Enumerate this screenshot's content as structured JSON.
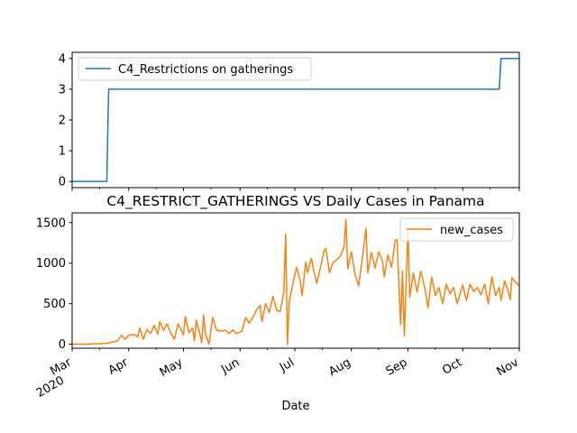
{
  "chart_data": [
    {
      "type": "line",
      "title": "",
      "xlabel": "",
      "ylabel": "",
      "xlim": [
        "2020-03-01",
        "2020-11-01"
      ],
      "ylim": [
        -0.2,
        4.2
      ],
      "yticks": [
        0,
        1,
        2,
        3,
        4
      ],
      "legend": "top-left",
      "grid": false,
      "series": [
        {
          "name": "C4_Restrictions on gatherings",
          "color": "#1f77b4",
          "points": [
            [
              "2020-03-01",
              0
            ],
            [
              "2020-03-20",
              0
            ],
            [
              "2020-03-21",
              3
            ],
            [
              "2020-10-21",
              3
            ],
            [
              "2020-10-22",
              4
            ],
            [
              "2020-11-01",
              4
            ]
          ]
        }
      ]
    },
    {
      "type": "line",
      "title": "C4_RESTRICT_GATHERINGS VS Daily Cases in Panama",
      "xlabel": "Date",
      "ylabel": "",
      "xlim": [
        "2020-03-01",
        "2020-11-01"
      ],
      "ylim": [
        -50,
        1620
      ],
      "yticks": [
        0,
        500,
        1000,
        1500
      ],
      "xticks": [
        {
          "date": "2020-03-01",
          "label": "Mar",
          "year": "2020"
        },
        {
          "date": "2020-04-01",
          "label": "Apr"
        },
        {
          "date": "2020-05-01",
          "label": "May"
        },
        {
          "date": "2020-06-01",
          "label": "Jun"
        },
        {
          "date": "2020-07-01",
          "label": "Jul"
        },
        {
          "date": "2020-08-01",
          "label": "Aug"
        },
        {
          "date": "2020-09-01",
          "label": "Sep"
        },
        {
          "date": "2020-10-01",
          "label": "Oct"
        },
        {
          "date": "2020-11-01",
          "label": "Nov"
        }
      ],
      "legend": "top-right",
      "grid": false,
      "series": [
        {
          "name": "new_cases",
          "color": "#ff7f0e",
          "points": [
            [
              "2020-03-01",
              0
            ],
            [
              "2020-03-10",
              0
            ],
            [
              "2020-03-15",
              5
            ],
            [
              "2020-03-20",
              10
            ],
            [
              "2020-03-23",
              25
            ],
            [
              "2020-03-26",
              40
            ],
            [
              "2020-03-28",
              110
            ],
            [
              "2020-03-30",
              60
            ],
            [
              "2020-04-01",
              110
            ],
            [
              "2020-04-04",
              120
            ],
            [
              "2020-04-06",
              90
            ],
            [
              "2020-04-07",
              200
            ],
            [
              "2020-04-09",
              60
            ],
            [
              "2020-04-11",
              180
            ],
            [
              "2020-04-13",
              130
            ],
            [
              "2020-04-15",
              230
            ],
            [
              "2020-04-17",
              120
            ],
            [
              "2020-04-18",
              280
            ],
            [
              "2020-04-20",
              170
            ],
            [
              "2020-04-22",
              250
            ],
            [
              "2020-04-24",
              140
            ],
            [
              "2020-04-26",
              60
            ],
            [
              "2020-04-28",
              250
            ],
            [
              "2020-04-30",
              170
            ],
            [
              "2020-05-01",
              110
            ],
            [
              "2020-05-02",
              340
            ],
            [
              "2020-05-04",
              140
            ],
            [
              "2020-05-06",
              200
            ],
            [
              "2020-05-07",
              40
            ],
            [
              "2020-05-08",
              300
            ],
            [
              "2020-05-10",
              120
            ],
            [
              "2020-05-11",
              20
            ],
            [
              "2020-05-12",
              360
            ],
            [
              "2020-05-13",
              130
            ],
            [
              "2020-05-15",
              0
            ],
            [
              "2020-05-17",
              330
            ],
            [
              "2020-05-19",
              180
            ],
            [
              "2020-05-21",
              160
            ],
            [
              "2020-05-24",
              170
            ],
            [
              "2020-05-26",
              130
            ],
            [
              "2020-05-28",
              175
            ],
            [
              "2020-05-30",
              130
            ],
            [
              "2020-06-02",
              160
            ],
            [
              "2020-06-04",
              330
            ],
            [
              "2020-06-06",
              260
            ],
            [
              "2020-06-08",
              330
            ],
            [
              "2020-06-10",
              420
            ],
            [
              "2020-06-12",
              480
            ],
            [
              "2020-06-13",
              280
            ],
            [
              "2020-06-15",
              500
            ],
            [
              "2020-06-17",
              390
            ],
            [
              "2020-06-19",
              590
            ],
            [
              "2020-06-21",
              420
            ],
            [
              "2020-06-23",
              400
            ],
            [
              "2020-06-25",
              650
            ],
            [
              "2020-06-26",
              1360
            ],
            [
              "2020-06-27",
              0
            ],
            [
              "2020-06-28",
              530
            ],
            [
              "2020-06-30",
              750
            ],
            [
              "2020-07-02",
              950
            ],
            [
              "2020-07-04",
              780
            ],
            [
              "2020-07-05",
              600
            ],
            [
              "2020-07-07",
              1010
            ],
            [
              "2020-07-08",
              880
            ],
            [
              "2020-07-10",
              1060
            ],
            [
              "2020-07-11",
              950
            ],
            [
              "2020-07-13",
              750
            ],
            [
              "2020-07-15",
              940
            ],
            [
              "2020-07-17",
              1150
            ],
            [
              "2020-07-18",
              1180
            ],
            [
              "2020-07-20",
              880
            ],
            [
              "2020-07-22",
              1010
            ],
            [
              "2020-07-24",
              1040
            ],
            [
              "2020-07-26",
              1090
            ],
            [
              "2020-07-28",
              1200
            ],
            [
              "2020-07-29",
              1540
            ],
            [
              "2020-07-30",
              930
            ],
            [
              "2020-08-01",
              1140
            ],
            [
              "2020-08-03",
              860
            ],
            [
              "2020-08-05",
              720
            ],
            [
              "2020-08-07",
              1060
            ],
            [
              "2020-08-09",
              1430
            ],
            [
              "2020-08-10",
              880
            ],
            [
              "2020-08-12",
              1130
            ],
            [
              "2020-08-14",
              940
            ],
            [
              "2020-08-16",
              1140
            ],
            [
              "2020-08-18",
              1030
            ],
            [
              "2020-08-19",
              830
            ],
            [
              "2020-08-21",
              1100
            ],
            [
              "2020-08-23",
              950
            ],
            [
              "2020-08-25",
              1280
            ],
            [
              "2020-08-26",
              1290
            ],
            [
              "2020-08-28",
              240
            ],
            [
              "2020-08-29",
              900
            ],
            [
              "2020-08-30",
              100
            ],
            [
              "2020-09-01",
              1420
            ],
            [
              "2020-09-02",
              580
            ],
            [
              "2020-09-04",
              880
            ],
            [
              "2020-09-06",
              640
            ],
            [
              "2020-09-08",
              900
            ],
            [
              "2020-09-10",
              720
            ],
            [
              "2020-09-12",
              450
            ],
            [
              "2020-09-14",
              830
            ],
            [
              "2020-09-16",
              600
            ],
            [
              "2020-09-18",
              700
            ],
            [
              "2020-09-20",
              500
            ],
            [
              "2020-09-22",
              740
            ],
            [
              "2020-09-24",
              620
            ],
            [
              "2020-09-26",
              700
            ],
            [
              "2020-09-28",
              500
            ],
            [
              "2020-10-01",
              730
            ],
            [
              "2020-10-03",
              540
            ],
            [
              "2020-10-05",
              740
            ],
            [
              "2020-10-07",
              650
            ],
            [
              "2020-10-09",
              700
            ],
            [
              "2020-10-11",
              610
            ],
            [
              "2020-10-13",
              740
            ],
            [
              "2020-10-15",
              500
            ],
            [
              "2020-10-17",
              830
            ],
            [
              "2020-10-19",
              600
            ],
            [
              "2020-10-21",
              700
            ],
            [
              "2020-10-22",
              540
            ],
            [
              "2020-10-24",
              780
            ],
            [
              "2020-10-26",
              650
            ],
            [
              "2020-10-27",
              550
            ],
            [
              "2020-10-28",
              820
            ],
            [
              "2020-10-30",
              760
            ],
            [
              "2020-11-01",
              720
            ]
          ]
        }
      ]
    }
  ]
}
